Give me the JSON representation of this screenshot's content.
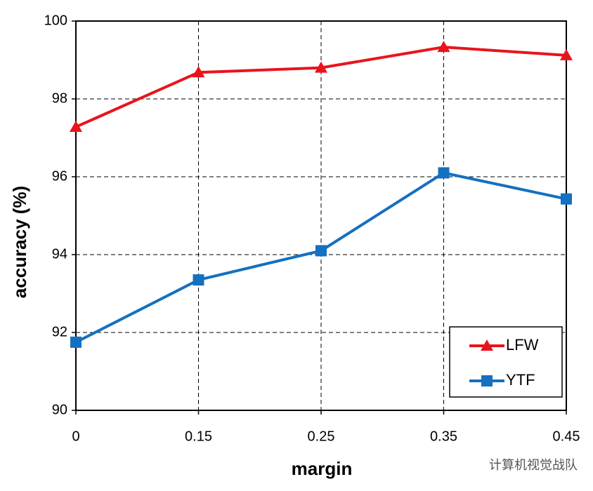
{
  "chart_data": {
    "type": "line",
    "xlabel": "margin",
    "ylabel": "accuracy (%)",
    "categories": [
      "0",
      "0.15",
      "0.25",
      "0.35",
      "0.45"
    ],
    "series": [
      {
        "name": "LFW",
        "color": "#e8141c",
        "marker": "triangle",
        "values": [
          97.28,
          98.68,
          98.8,
          99.33,
          99.12
        ]
      },
      {
        "name": "YTF",
        "color": "#1470c0",
        "marker": "square",
        "values": [
          91.75,
          93.35,
          94.1,
          96.1,
          95.43
        ]
      }
    ],
    "ylim": [
      90,
      100
    ],
    "yticks": [
      90,
      92,
      94,
      96,
      98,
      100
    ],
    "grid": true,
    "legend": "lower right",
    "watermark": "计算机视觉战队"
  }
}
